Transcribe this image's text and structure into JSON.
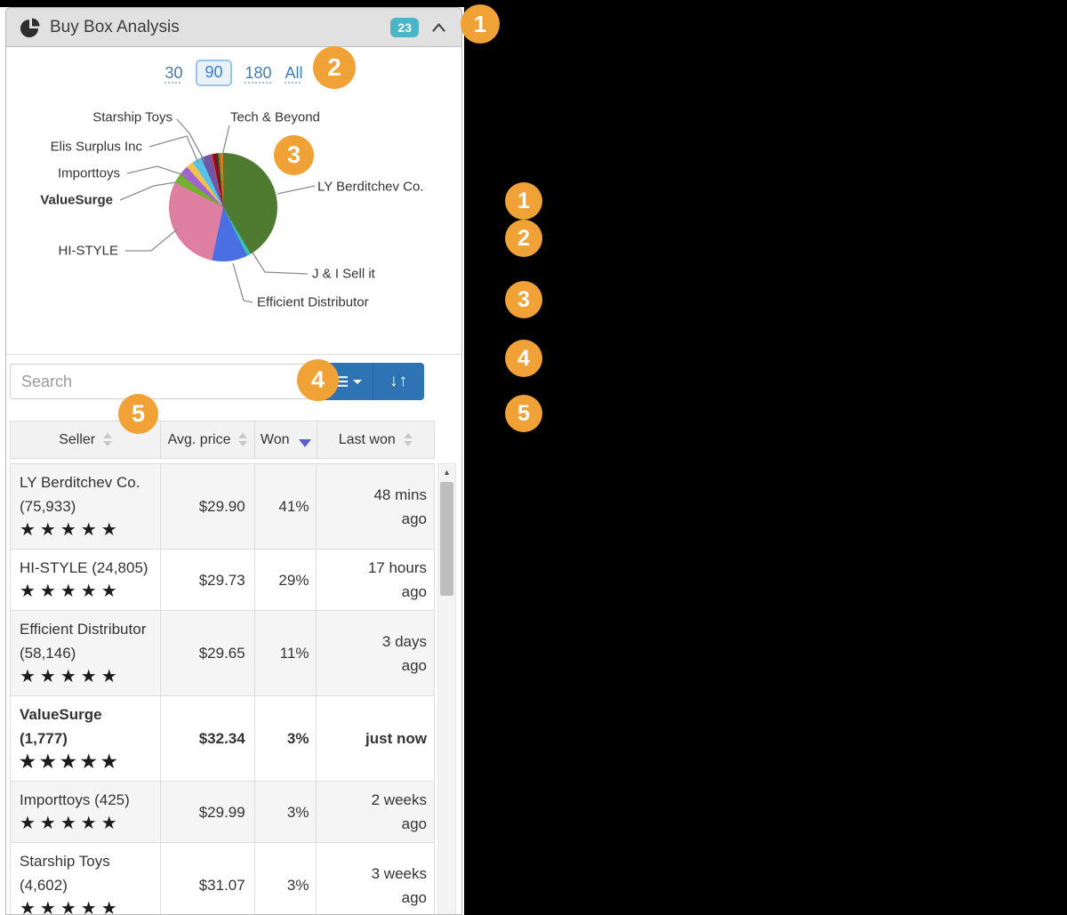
{
  "header": {
    "title": "Buy Box Analysis",
    "badge_count": "23"
  },
  "time_filter": {
    "options": [
      {
        "label": "30",
        "selected": false
      },
      {
        "label": "90",
        "selected": true
      },
      {
        "label": "180",
        "selected": false
      },
      {
        "label": "All",
        "selected": false
      }
    ]
  },
  "chart_data": {
    "type": "pie",
    "unit": "% of buy box won (90 days)",
    "slices": [
      {
        "name": "LY Berditchev Co.",
        "value": 41.5,
        "color": "#4E7B2F"
      },
      {
        "name": "J & I Sell it",
        "value": 1.2,
        "color": "#3DBDB5"
      },
      {
        "name": "Efficient Distributor",
        "value": 10.6,
        "color": "#4A6FE3"
      },
      {
        "name": "HI-STYLE",
        "value": 29.2,
        "color": "#DE7EA0"
      },
      {
        "name": "ValueSurge",
        "value": 2.8,
        "color": "#72B32C"
      },
      {
        "name": "Importtoys",
        "value": 3.0,
        "color": "#A263CE"
      },
      {
        "name": "",
        "value": 2.2,
        "color": "#F2C24E"
      },
      {
        "name": "Elis Surplus Inc",
        "value": 2.8,
        "color": "#55C3EA"
      },
      {
        "name": "Starship Toys",
        "value": 2.8,
        "color": "#7058A8"
      },
      {
        "name": "",
        "value": 0.7,
        "color": "#C04058"
      },
      {
        "name": "",
        "value": 1.7,
        "color": "#78151F"
      },
      {
        "name": "",
        "value": 0.6,
        "color": "#3E9C39"
      },
      {
        "name": "Tech & Beyond",
        "value": 0.9,
        "color": "#E0751C"
      }
    ],
    "callouts": [
      "Starship Toys",
      "Tech & Beyond",
      "Elis Surplus Inc",
      "Importtoys",
      "ValueSurge",
      "HI-STYLE",
      "LY Berditchev Co.",
      "J & I Sell it",
      "Efficient Distributor"
    ]
  },
  "search": {
    "placeholder": "Search"
  },
  "table": {
    "columns": [
      {
        "label": "Seller",
        "sort": "none"
      },
      {
        "label": "Avg. price",
        "sort": "none"
      },
      {
        "label": "Won",
        "sort": "desc"
      },
      {
        "label": "Last won",
        "sort": "none"
      }
    ],
    "rows": [
      {
        "name_lines": [
          "LY Berditchev Co.",
          "(75,933)"
        ],
        "stars": "★★★★★",
        "avg_price": "$29.90",
        "won": "41%",
        "last_won": "48 mins ago",
        "bold": false
      },
      {
        "name_lines": [
          "HI-STYLE (24,805)"
        ],
        "stars": "★★★★★",
        "avg_price": "$29.73",
        "won": "29%",
        "last_won": "17 hours ago",
        "bold": false
      },
      {
        "name_lines": [
          "Efficient Distributor",
          "(58,146)"
        ],
        "stars": "★★★★★",
        "avg_price": "$29.65",
        "won": "11%",
        "last_won": "3 days ago",
        "bold": false
      },
      {
        "name_lines": [
          "ValueSurge",
          "(1,777)"
        ],
        "stars": "★★★★★",
        "avg_price": "$32.34",
        "won": "3%",
        "last_won": "just now",
        "bold": true
      },
      {
        "name_lines": [
          "Importtoys (425)"
        ],
        "stars": "★★★★★",
        "avg_price": "$29.99",
        "won": "3%",
        "last_won": "2 weeks ago",
        "bold": false
      },
      {
        "name_lines": [
          "Starship Toys",
          "(4,602)"
        ],
        "stars": "★★★★★",
        "avg_price": "$31.07",
        "won": "3%",
        "last_won": "3 weeks ago",
        "bold": false
      }
    ]
  },
  "annotations": {
    "labels": [
      "1",
      "2",
      "3",
      "4",
      "5"
    ]
  },
  "colors": {
    "accent_orange": "#F0A237",
    "badge_teal": "#4BB5C8",
    "button_blue": "#2E74B5",
    "link_blue": "#3E7CBE",
    "sort_active": "#5A5FD0"
  }
}
